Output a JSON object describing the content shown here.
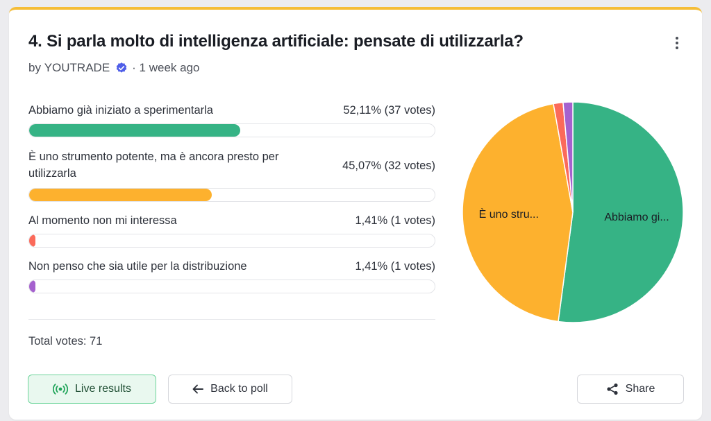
{
  "poll": {
    "title": "4. Si parla molto di intelligenza artificiale: pensate di utilizzarla?",
    "author_prefix": "by",
    "author": "YOUTRADE",
    "time": "· 1 week ago",
    "options": [
      {
        "label": "Abbiamo già iniziato a sperimentarla",
        "pct": "52,11% (37 votes)",
        "share": 0.5211,
        "color": "#36b385",
        "pie_label": "Abbiamo gi..."
      },
      {
        "label": "È uno strumento potente, ma è ancora presto per utilizzarla",
        "pct": "45,07% (32 votes)",
        "share": 0.4507,
        "color": "#fdb12e",
        "pie_label": "È uno stru..."
      },
      {
        "label": "Al momento non mi interessa",
        "pct": "1,41% (1 votes)",
        "share": 0.0141,
        "color": "#fb6a5a",
        "pie_label": ""
      },
      {
        "label": "Non penso che sia utile per la distribuzione",
        "pct": "1,41% (1 votes)",
        "share": 0.0141,
        "color": "#a561ce",
        "pie_label": ""
      }
    ],
    "total": "Total votes: 71"
  },
  "buttons": {
    "live": "Live results",
    "back": "Back to poll",
    "share": "Share"
  },
  "icons": {
    "menu": "kebab-menu-icon",
    "verified": "verified-badge-icon",
    "live": "broadcast-icon",
    "back": "arrow-left-icon",
    "share": "share-icon"
  },
  "colors": {
    "accent": "#f5bd37",
    "verified": "#4f5ee8",
    "live_bg": "#e9f8ef",
    "live_border": "#6bd49a"
  }
}
